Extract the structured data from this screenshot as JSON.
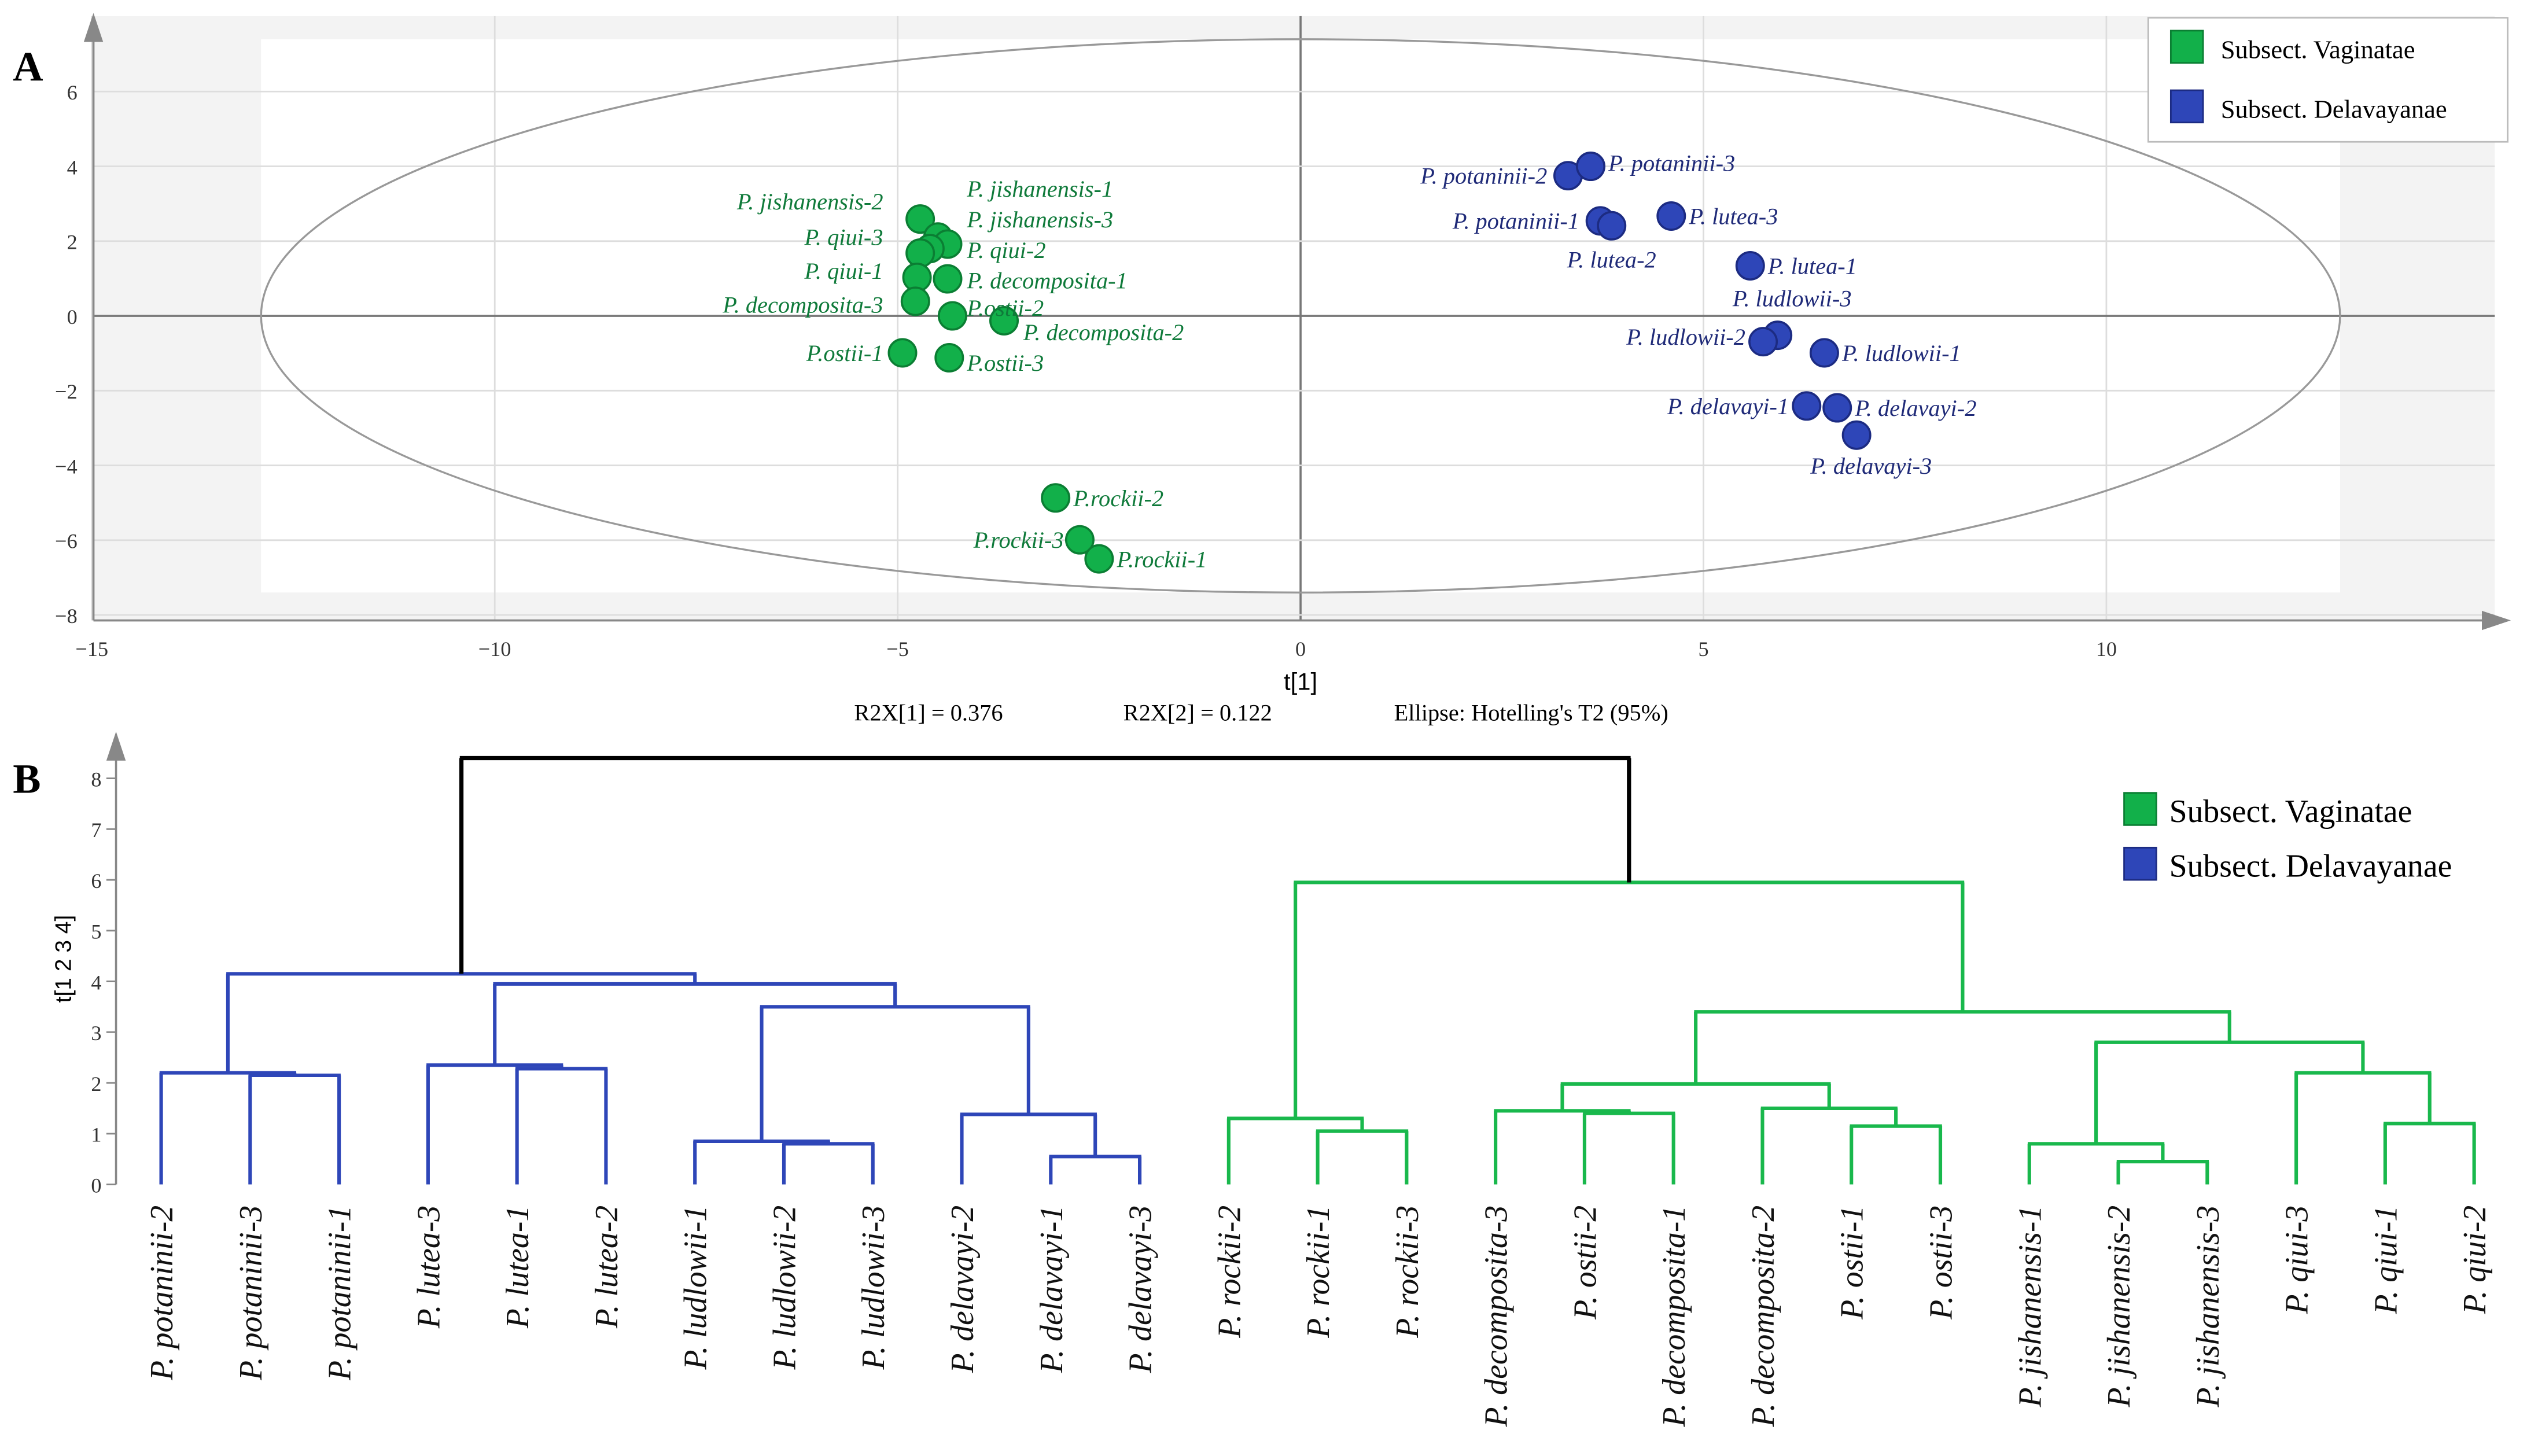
{
  "chart_data": [
    {
      "panel": "A",
      "type": "scatter",
      "xlabel": "t[1]",
      "xlim": [
        -15,
        15
      ],
      "ylim": [
        -8,
        7
      ],
      "xticks": [
        -15,
        -10,
        -5,
        0,
        5,
        10
      ],
      "yticks": [
        -8,
        -6,
        -4,
        -2,
        0,
        2,
        4,
        6
      ],
      "grid": true,
      "legend_placement": "top-right",
      "footer": {
        "r2x1": "R2X[1] = 0.376",
        "r2x2": "R2X[2] = 0.122",
        "ellipse": "Ellipse: Hotelling's T2 (95%)"
      },
      "ellipse_radii": [
        12.9,
        7.4
      ],
      "series": [
        {
          "name": "Subsect. Vaginatae",
          "color": "#12b04a",
          "points": [
            {
              "label": "P. jishanensis-2",
              "x": -4.72,
              "y": 2.59
            },
            {
              "label": "P. jishanensis-1",
              "x": -4.5,
              "y": 2.11
            },
            {
              "label": "P. jishanensis-3",
              "x": -4.38,
              "y": 1.92
            },
            {
              "label": "P. qiui-2",
              "x": -4.6,
              "y": 1.8
            },
            {
              "label": "P. qiui-3",
              "x": -4.72,
              "y": 1.68
            },
            {
              "label": "P. qiui-1",
              "x": -4.76,
              "y": 1.03
            },
            {
              "label": "P. decomposita-1",
              "x": -4.38,
              "y": 0.99
            },
            {
              "label": "P. decomposita-3",
              "x": -4.78,
              "y": 0.39
            },
            {
              "label": "P.ostii-2",
              "x": -4.32,
              "y": 0.0
            },
            {
              "label": "P. decomposita-2",
              "x": -3.68,
              "y": -0.13
            },
            {
              "label": "P.ostii-1",
              "x": -4.94,
              "y": -0.99
            },
            {
              "label": "P.ostii-3",
              "x": -4.36,
              "y": -1.12
            },
            {
              "label": "P.rockii-2",
              "x": -3.04,
              "y": -4.87
            },
            {
              "label": "P.rockii-3",
              "x": -2.74,
              "y": -5.99
            },
            {
              "label": "P.rockii-1",
              "x": -2.5,
              "y": -6.5
            }
          ]
        },
        {
          "name": "Subsect. Delavayanae",
          "color": "#2e46b8",
          "points": [
            {
              "label": "P. potaninii-2",
              "x": 3.32,
              "y": 3.75
            },
            {
              "label": "P. potaninii-3",
              "x": 3.6,
              "y": 4.0
            },
            {
              "label": "P. potaninii-1",
              "x": 3.72,
              "y": 2.54
            },
            {
              "label": "P. lutea-2",
              "x": 3.86,
              "y": 2.41
            },
            {
              "label": "P. lutea-3",
              "x": 4.6,
              "y": 2.67
            },
            {
              "label": "P. lutea-1",
              "x": 5.58,
              "y": 1.34
            },
            {
              "label": "P. ludlowii-3",
              "x": 5.92,
              "y": -0.52
            },
            {
              "label": "P. ludlowii-2",
              "x": 5.74,
              "y": -0.69
            },
            {
              "label": "P. ludlowii-1",
              "x": 6.5,
              "y": -0.99
            },
            {
              "label": "P. delavayi-1",
              "x": 6.28,
              "y": -2.41
            },
            {
              "label": "P. delavayi-2",
              "x": 6.66,
              "y": -2.46
            },
            {
              "label": "P. delavayi-3",
              "x": 6.9,
              "y": -3.19
            }
          ]
        }
      ]
    },
    {
      "panel": "B",
      "type": "dendrogram",
      "ylabel": "t[1 2 3 4]",
      "ylim": [
        0,
        8.5
      ],
      "yticks": [
        0,
        1,
        2,
        3,
        4,
        5,
        6,
        7,
        8
      ],
      "legend_placement": "top-right",
      "legend": [
        {
          "name": "Subsect. Vaginatae",
          "color": "#12b04a"
        },
        {
          "name": "Subsect. Delavayanae",
          "color": "#2e46b8"
        }
      ],
      "leaves": [
        "P. potaninii-2",
        "P. potaninii-3",
        "P. potaninii-1",
        "P. lutea-3",
        "P. lutea-1",
        "P. lutea-2",
        "P. ludlowii-1",
        "P. ludlowii-2",
        "P. ludlowii-3",
        "P. delavayi-2",
        "P. delavayi-1",
        "P. delavayi-3",
        "P. rockii-2",
        "P. rockii-1",
        "P. rockii-3",
        "P. decomposita-3",
        "P. ostii-2",
        "P. decomposita-1",
        "P. decomposita-2",
        "P. ostii-1",
        "P. ostii-3",
        "P. jishanensis-1",
        "P. jishanensis-2",
        "P. jishanensis-3",
        "P. qiui-3",
        "P. qiui-1",
        "P. qiui-2"
      ],
      "tree": {
        "h": 8.4,
        "c": "#000000",
        "k": [
          {
            "h": 4.15,
            "c": "#2e46b8",
            "k": [
              {
                "h": 2.2,
                "k": [
                  0,
                  {
                    "h": 2.15,
                    "k": [
                      1,
                      2
                    ]
                  }
                ]
              },
              {
                "h": 3.95,
                "k": [
                  {
                    "h": 2.35,
                    "k": [
                      3,
                      {
                        "h": 2.28,
                        "k": [
                          4,
                          5
                        ]
                      }
                    ]
                  },
                  {
                    "h": 3.5,
                    "k": [
                      {
                        "h": 0.85,
                        "k": [
                          6,
                          {
                            "h": 0.8,
                            "k": [
                              7,
                              8
                            ]
                          }
                        ]
                      },
                      {
                        "h": 1.38,
                        "k": [
                          9,
                          {
                            "h": 0.55,
                            "k": [
                              10,
                              11
                            ]
                          }
                        ]
                      }
                    ]
                  }
                ]
              }
            ]
          },
          {
            "h": 5.95,
            "c": "#19b84c",
            "k": [
              {
                "h": 1.3,
                "k": [
                  12,
                  {
                    "h": 1.05,
                    "k": [
                      13,
                      14
                    ]
                  }
                ]
              },
              {
                "h": 3.4,
                "k": [
                  {
                    "h": 1.98,
                    "k": [
                      {
                        "h": 1.45,
                        "k": [
                          15,
                          {
                            "h": 1.4,
                            "k": [
                              16,
                              17
                            ]
                          }
                        ]
                      },
                      {
                        "h": 1.5,
                        "k": [
                          18,
                          {
                            "h": 1.15,
                            "k": [
                              19,
                              20
                            ]
                          }
                        ]
                      }
                    ]
                  },
                  {
                    "h": 2.8,
                    "k": [
                      {
                        "h": 0.8,
                        "k": [
                          21,
                          {
                            "h": 0.45,
                            "k": [
                              22,
                              23
                            ]
                          }
                        ]
                      },
                      {
                        "h": 2.2,
                        "k": [
                          24,
                          {
                            "h": 1.2,
                            "k": [
                              25,
                              26
                            ]
                          }
                        ]
                      }
                    ]
                  }
                ]
              }
            ]
          }
        ]
      }
    }
  ],
  "panel_labels": [
    "A",
    "B"
  ]
}
